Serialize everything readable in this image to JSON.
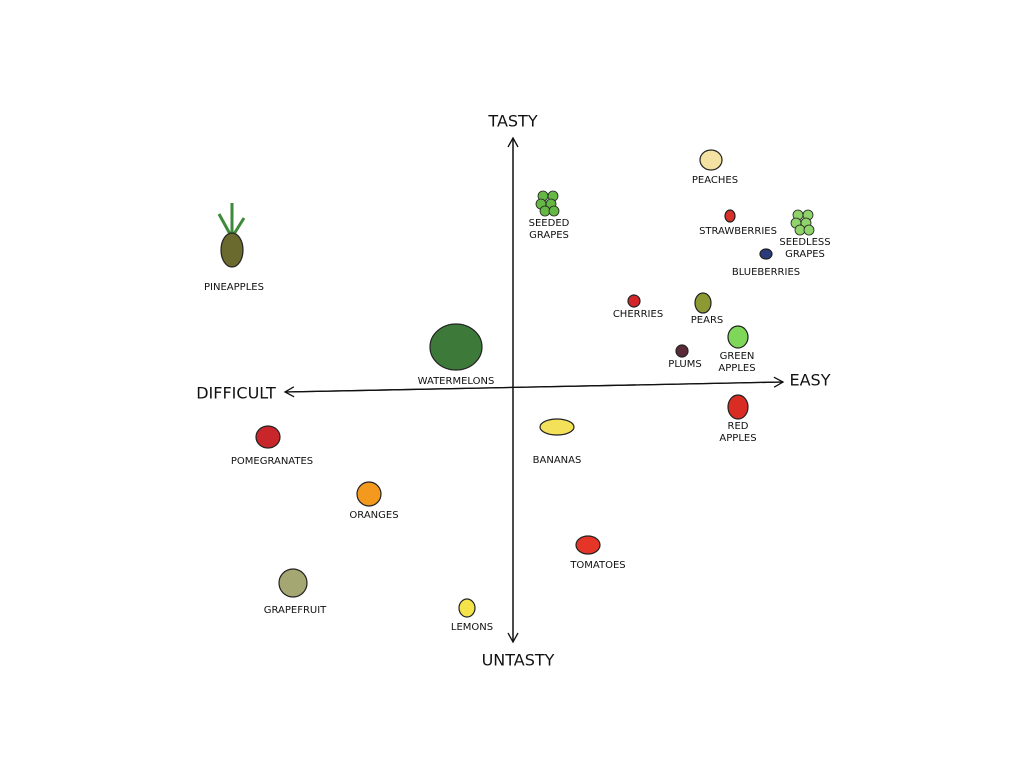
{
  "axes": {
    "top": "TASTY",
    "bottom": "UNTASTY",
    "left": "DIFFICULT",
    "right": "EASY"
  },
  "items": [
    {
      "label": [
        "PINEAPPLES"
      ]
    },
    {
      "label": [
        "SEEDED",
        "GRAPES"
      ]
    },
    {
      "label": [
        "PEACHES"
      ]
    },
    {
      "label": [
        "STRAWBERRIES"
      ]
    },
    {
      "label": [
        "SEEDLESS",
        "GRAPES"
      ]
    },
    {
      "label": [
        "BLUEBERRIES"
      ]
    },
    {
      "label": [
        "CHERRIES"
      ]
    },
    {
      "label": [
        "PEARS"
      ]
    },
    {
      "label": [
        "GREEN",
        "APPLES"
      ]
    },
    {
      "label": [
        "PLUMS"
      ]
    },
    {
      "label": [
        "WATERMELONS"
      ]
    },
    {
      "label": [
        "RED",
        "APPLES"
      ]
    },
    {
      "label": [
        "POMEGRANATES"
      ]
    },
    {
      "label": [
        "BANANAS"
      ]
    },
    {
      "label": [
        "ORANGES"
      ]
    },
    {
      "label": [
        "TOMATOES"
      ]
    },
    {
      "label": [
        "GRAPEFRUIT"
      ]
    },
    {
      "label": [
        "LEMONS"
      ]
    }
  ]
}
